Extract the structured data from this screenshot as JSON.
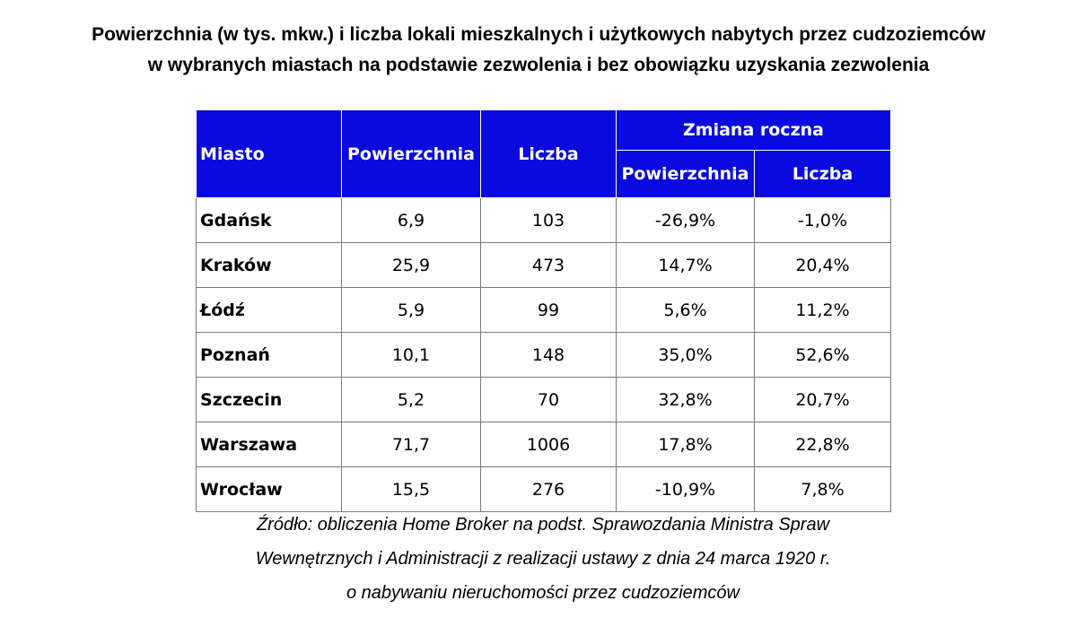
{
  "title": {
    "line1": "Powierzchnia (w tys. mkw.) i liczba lokali mieszkalnych i użytkowych nabytych przez cudzoziemców",
    "line2": "w wybranych miastach na podstawie zezwolenia i bez obowiązku uzyskania zezwolenia"
  },
  "table": {
    "headers": {
      "city": "Miasto",
      "area": "Powierzchnia",
      "count": "Liczba",
      "change_group": "Zmiana roczna",
      "change_area": "Powierzchnia",
      "change_count": "Liczba"
    },
    "rows": [
      {
        "city": "Gdańsk",
        "area": "6,9",
        "count": "103",
        "change_area": "-26,9%",
        "change_count": "-1,0%"
      },
      {
        "city": "Kraków",
        "area": "25,9",
        "count": "473",
        "change_area": "14,7%",
        "change_count": "20,4%"
      },
      {
        "city": "Łódź",
        "area": "5,9",
        "count": "99",
        "change_area": "5,6%",
        "change_count": "11,2%"
      },
      {
        "city": "Poznań",
        "area": "10,1",
        "count": "148",
        "change_area": "35,0%",
        "change_count": "52,6%"
      },
      {
        "city": "Szczecin",
        "area": "5,2",
        "count": "70",
        "change_area": "32,8%",
        "change_count": "20,7%"
      },
      {
        "city": "Warszawa",
        "area": "71,7",
        "count": "1006",
        "change_area": "17,8%",
        "change_count": "22,8%"
      },
      {
        "city": "Wrocław",
        "area": "15,5",
        "count": "276",
        "change_area": "-10,9%",
        "change_count": "7,8%"
      }
    ]
  },
  "source": {
    "line1": "Źródło: obliczenia Home Broker na podst. Sprawozdania Ministra Spraw",
    "line2": "Wewnętrznych i Administracji z realizacji ustawy z dnia 24 marca 1920 r.",
    "line3": "o nabywaniu nieruchomości przez cudzoziemców"
  },
  "colors": {
    "header_bg": "#0a0ae0",
    "header_text": "#ffffff",
    "grid": "#7a7a7a"
  }
}
